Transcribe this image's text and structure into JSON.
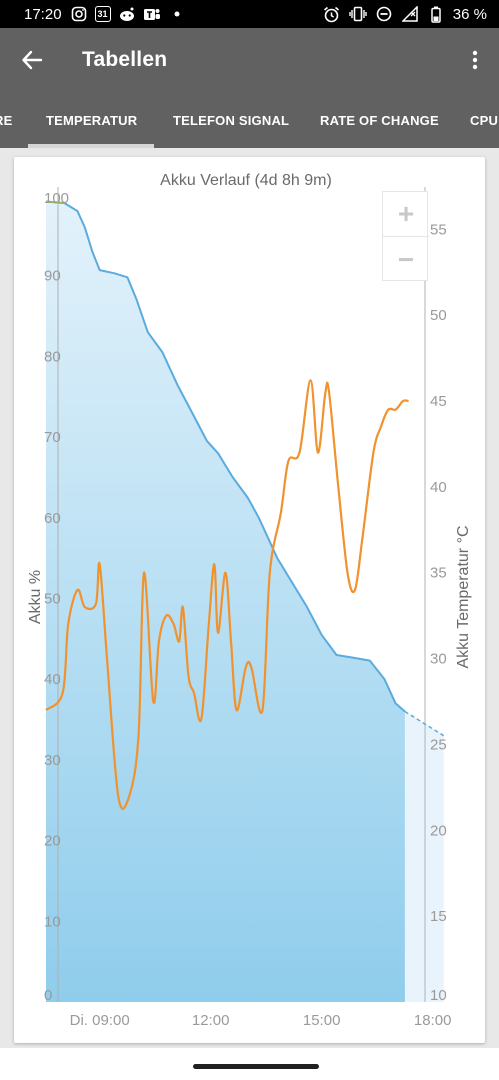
{
  "status_bar": {
    "time": "17:20",
    "left_icons": [
      "instagram-icon",
      "calendar-icon",
      "reddit-icon",
      "teams-icon",
      "dot-icon"
    ],
    "calendar_day": "31",
    "right_icons": [
      "alarm-icon",
      "vibrate-icon",
      "dnd-icon",
      "signal-icon",
      "battery-icon"
    ],
    "battery": "36 %"
  },
  "app_bar": {
    "title": "Tabellen"
  },
  "tabs": [
    {
      "label": "RE",
      "active": false
    },
    {
      "label": "TEMPERATUR",
      "active": true
    },
    {
      "label": "TELEFON SIGNAL",
      "active": false
    },
    {
      "label": "RATE OF CHANGE",
      "active": false
    },
    {
      "label": "CPU",
      "active": false
    }
  ],
  "zoom": {
    "in_label": "+",
    "out_label": "−"
  },
  "chart_data": {
    "type": "line",
    "title": "Akku Verlauf (4d 8h 9m)",
    "ylabel": "Akku %",
    "y2label": "Akku Temperatur °C",
    "x_ticks": [
      "Di. 09:00",
      "12:00",
      "15:00",
      "18:00"
    ],
    "x_tick_hours": [
      9,
      12,
      15,
      18
    ],
    "xlim": [
      7.55,
      18.55
    ],
    "ylim": [
      0,
      100
    ],
    "y_ticks": [
      "0",
      "10",
      "20",
      "30",
      "40",
      "50",
      "60",
      "70",
      "80",
      "90",
      "100"
    ],
    "y2lim": [
      10,
      57
    ],
    "y2_ticks": [
      "10",
      "15",
      "20",
      "25",
      "30",
      "35",
      "40",
      "45",
      "50",
      "55"
    ],
    "colors": {
      "battery_line": "#5aabde",
      "battery_fill_top": "#e3f2fb",
      "battery_fill_bottom": "#8fcdec",
      "temperature_line": "#f0922e",
      "full_charge": "#8bc34a",
      "prediction_fill": "#e8f3fb"
    },
    "series": [
      {
        "axis": "left",
        "x": [
          7.55,
          8.05,
          8.4,
          8.6,
          8.8,
          9.0,
          9.4,
          9.75,
          10.0,
          10.3,
          10.7,
          11.1,
          11.5,
          11.9,
          12.2,
          12.6,
          13.0,
          13.3,
          13.8,
          14.2,
          14.6,
          15.0,
          15.4,
          15.8,
          16.3,
          16.7,
          17.0,
          17.25
        ],
        "y": [
          99.2,
          99.0,
          98,
          96,
          93,
          90.7,
          90.3,
          89.8,
          87,
          83,
          80.5,
          76.5,
          73,
          69.5,
          68,
          65,
          62.5,
          60,
          55,
          52,
          49,
          45.5,
          43,
          42.7,
          42.3,
          40,
          37,
          36
        ]
      },
      {
        "axis": "left",
        "x": [
          17.25,
          18.3
        ],
        "y": [
          36,
          33
        ]
      },
      {
        "axis": "right",
        "x": [
          7.55,
          8.0,
          8.15,
          8.4,
          8.6,
          8.9,
          9.0,
          9.2,
          9.5,
          9.8,
          10.05,
          10.2,
          10.45,
          10.6,
          10.8,
          11.0,
          11.15,
          11.25,
          11.4,
          11.55,
          11.75,
          11.95,
          12.1,
          12.2,
          12.4,
          12.55,
          12.7,
          12.95,
          13.1,
          13.4,
          13.6,
          13.9,
          14.1,
          14.4,
          14.7,
          14.9,
          15.1,
          15.2,
          15.45,
          15.7,
          15.9,
          16.1,
          16.4,
          16.6,
          16.8,
          17.0,
          17.2,
          17.35
        ],
        "y": [
          27,
          28,
          32,
          34,
          33,
          33.2,
          35.5,
          30,
          22,
          22,
          25.5,
          35,
          27.5,
          31,
          32.5,
          32,
          31,
          33,
          29,
          28,
          26.5,
          32,
          35.5,
          31.5,
          35,
          31,
          27,
          29.5,
          29.5,
          27,
          35,
          38.5,
          41.5,
          42,
          46.2,
          42,
          45.5,
          45.5,
          40,
          35,
          34,
          37,
          42,
          43.5,
          44.5,
          44.5,
          45,
          45
        ]
      }
    ]
  }
}
